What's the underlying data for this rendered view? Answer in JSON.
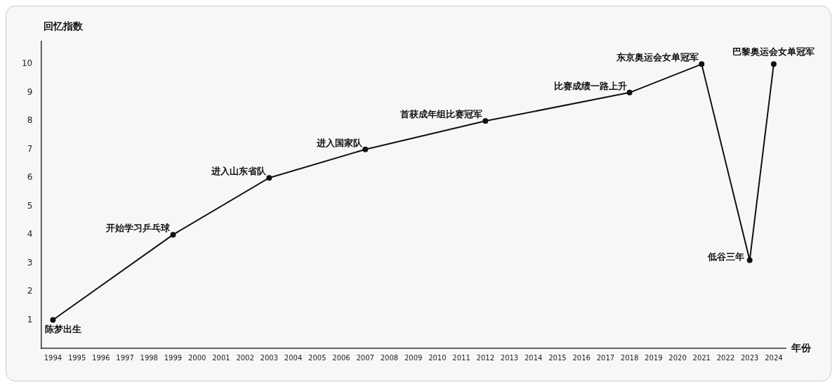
{
  "chart_data": {
    "type": "line",
    "xlabel": "年份",
    "ylabel": "回忆指数",
    "categories": [
      "1994",
      "1995",
      "1996",
      "1997",
      "1998",
      "1999",
      "2000",
      "2001",
      "2002",
      "2003",
      "2004",
      "2005",
      "2006",
      "2007",
      "2008",
      "2009",
      "2010",
      "2011",
      "2012",
      "2013",
      "2014",
      "2015",
      "2016",
      "2017",
      "2018",
      "2019",
      "2020",
      "2021",
      "2022",
      "2023",
      "2024"
    ],
    "series": [
      {
        "color": "#111111",
        "values": [
          1,
          null,
          null,
          null,
          null,
          4,
          null,
          null,
          null,
          6,
          null,
          null,
          null,
          7,
          null,
          null,
          null,
          null,
          8,
          null,
          null,
          null,
          null,
          null,
          9,
          null,
          null,
          10,
          null,
          3.1,
          10
        ]
      }
    ],
    "ylim": [
      0,
      10.8
    ],
    "yticks": [
      1,
      2,
      3,
      4,
      5,
      6,
      7,
      8,
      9,
      10
    ],
    "grid": false,
    "legend": false,
    "marker": "circle",
    "line_style": "solid",
    "annotations": [
      {
        "text": "陈梦出生",
        "x": "1994",
        "y": 1
      },
      {
        "text": "开始学习乒乓球",
        "x": "1999",
        "y": 4
      },
      {
        "text": "进入山东省队",
        "x": "2003",
        "y": 6
      },
      {
        "text": "进入国家队",
        "x": "2007",
        "y": 7
      },
      {
        "text": "首获成年组比赛冠军",
        "x": "2012",
        "y": 8
      },
      {
        "text": "比赛成绩一路上升",
        "x": "2018",
        "y": 9
      },
      {
        "text": "东京奥运会女单冠军",
        "x": "2021",
        "y": 10
      },
      {
        "text": "低谷三年",
        "x": "2023",
        "y": 3.1
      },
      {
        "text": "巴黎奥运会女单冠军",
        "x": "2024",
        "y": 10
      }
    ]
  }
}
